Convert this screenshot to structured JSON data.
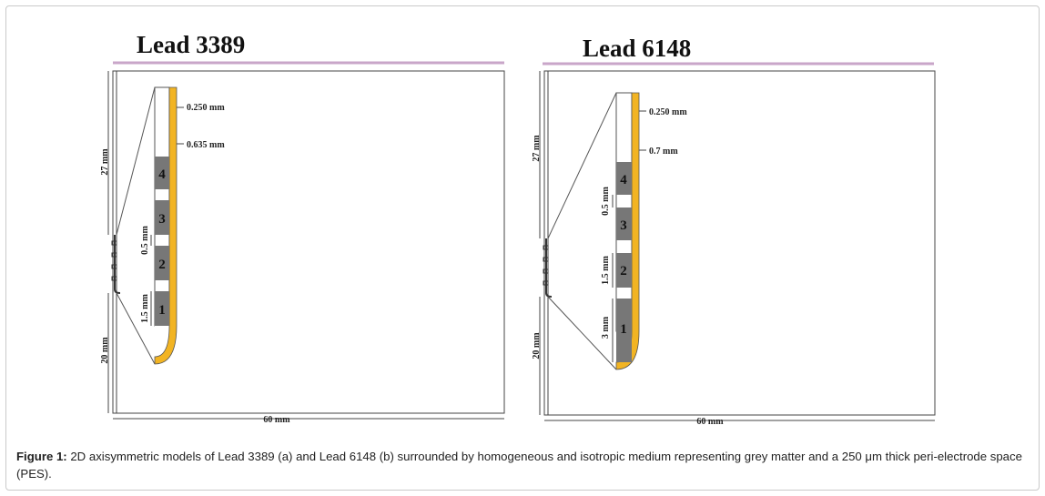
{
  "panels": [
    {
      "title": "Lead 3389",
      "labels": {
        "height_top": "27 mm",
        "height_bottom": "20 mm",
        "width": "60 mm",
        "pes": "0.250 mm",
        "tip_gap": "0.635 mm",
        "spacing": "0.5 mm",
        "contact_length": "1.5 mm"
      },
      "contacts": [
        "4",
        "3",
        "2",
        "1"
      ]
    },
    {
      "title": "Lead 6148",
      "labels": {
        "height_top": "27 mm",
        "height_bottom": "20 mm",
        "width": "60 mm",
        "pes": "0.250 mm",
        "tip_gap": "0.7 mm",
        "spacing": "0.5 mm",
        "spacing2": "1.5 mm",
        "contact_length": "3 mm"
      },
      "contacts": [
        "4",
        "3",
        "2",
        "1"
      ]
    }
  ],
  "caption": {
    "label": "Figure 1:",
    "text": " 2D axisymmetric models of Lead 3389 (a) and Lead 6148 (b) surrounded by homogeneous and isotropic medium representing grey matter and a 250 μm thick peri-electrode space (PES)."
  },
  "colors": {
    "lead": "#f2b423",
    "contact": "#777777",
    "underline": "#c9a6c9"
  }
}
